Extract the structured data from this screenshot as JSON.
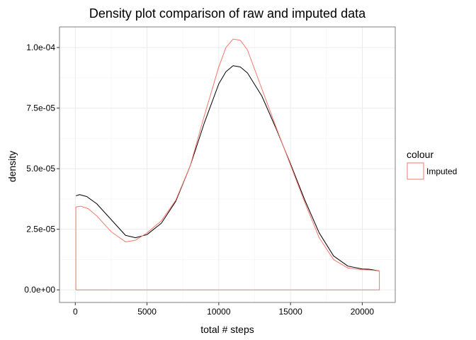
{
  "chart_data": {
    "type": "line",
    "title": "Density plot comparison of raw and imputed data",
    "xlabel": "total # steps",
    "ylabel": "density",
    "xlim": [
      -1100,
      22300
    ],
    "ylim": [
      -5.2e-06,
      0.0001085
    ],
    "x_ticks": [
      0,
      5000,
      10000,
      15000,
      20000
    ],
    "x_tick_labels": [
      "0",
      "5000",
      "10000",
      "15000",
      "20000"
    ],
    "y_ticks": [
      0,
      2.5e-05,
      5e-05,
      7.5e-05,
      0.0001
    ],
    "y_tick_labels": [
      "0.0e+00",
      "2.5e-05",
      "5.0e-05",
      "7.5e-05",
      "1.0e-04"
    ],
    "grid": true,
    "legend": {
      "title": "colour",
      "position": "right",
      "entries": [
        {
          "label": "Imputed",
          "color": "#F8766D"
        }
      ]
    },
    "series": [
      {
        "color": "#000000",
        "x": [
          41,
          300,
          800,
          1500,
          2500,
          3500,
          4200,
          5000,
          6000,
          7000,
          8000,
          9000,
          10000,
          10500,
          11000,
          11500,
          12000,
          13000,
          14000,
          15000,
          16000,
          17000,
          18000,
          19000,
          20000,
          20500,
          21194
        ],
        "y": [
          3.88e-05,
          3.93e-05,
          3.85e-05,
          3.55e-05,
          2.9e-05,
          2.25e-05,
          2.15e-05,
          2.28e-05,
          2.75e-05,
          3.65e-05,
          5.1e-05,
          6.9e-05,
          8.5e-05,
          9e-05,
          9.25e-05,
          9.2e-05,
          8.95e-05,
          8e-05,
          6.65e-05,
          5.2e-05,
          3.7e-05,
          2.35e-05,
          1.4e-05,
          9.8e-06,
          8.6e-06,
          8.5e-06,
          7.8e-06
        ]
      },
      {
        "name": "Imputed",
        "color": "#F8766D",
        "x": [
          41,
          41,
          400,
          900,
          1500,
          2500,
          3500,
          4200,
          5000,
          6000,
          7000,
          8000,
          9000,
          10000,
          10500,
          11000,
          11500,
          12000,
          13000,
          14000,
          15000,
          16000,
          17000,
          18000,
          19000,
          20000,
          20500,
          21194,
          21194,
          41
        ],
        "y": [
          0,
          3.42e-05,
          3.45e-05,
          3.35e-05,
          3.05e-05,
          2.4e-05,
          1.98e-05,
          2.05e-05,
          2.35e-05,
          2.85e-05,
          3.7e-05,
          5.1e-05,
          7.2e-05,
          9.2e-05,
          0.0001,
          0.0001035,
          0.000103,
          9.9e-05,
          8.3e-05,
          6.7e-05,
          5.15e-05,
          3.6e-05,
          2.15e-05,
          1.25e-05,
          9e-06,
          8.3e-06,
          8.2e-06,
          7.8e-06,
          0,
          0
        ]
      }
    ]
  }
}
